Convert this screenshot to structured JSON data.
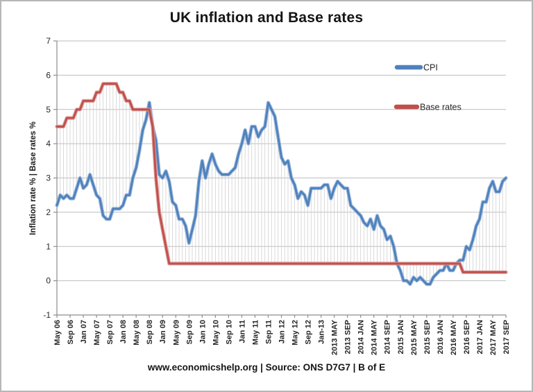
{
  "chart_data": {
    "type": "line",
    "title": "UK inflation and Base rates",
    "xlabel": "",
    "ylabel": "Inflation rate % | Base rates %",
    "footer": "www.economicshelp.org | Source: ONS D7G7 | B of E",
    "ylim": [
      -1,
      7
    ],
    "yticks": [
      -1,
      0,
      1,
      2,
      3,
      4,
      5,
      6,
      7
    ],
    "grid": true,
    "high_low_lines": true,
    "legend_position": "inside-top-right",
    "x_unit": "month",
    "x_start": "May 2006",
    "x_end": "Sep 2017",
    "xtick_interval_months": 4,
    "xtick_labels": [
      "May 06",
      "Sep 06",
      "Jan 07",
      "May 07",
      "Sep 07",
      "Jan 08",
      "May 08",
      "Sep 08",
      "Jan 09",
      "May 09",
      "Sep 09",
      "Jan 10",
      "May 10",
      "Sep 10",
      "Jan 11",
      "May 11",
      "Sep 11",
      "Jan 12",
      "May 12",
      "Sep 12",
      "Jan-13",
      "2013 MAY",
      "2013 SEP",
      "2014 JAN",
      "2014 MAY",
      "2014 SEP",
      "2015 JAN",
      "2015 MAY",
      "2015 SEP",
      "2016 JAN",
      "2016 MAY",
      "2016 SEP",
      "2017 JAN",
      "2017 MAY",
      "2017 SEP"
    ],
    "colors": {
      "cpi": "#4F81BD",
      "cpi_halo": "#95B3D7",
      "base": "#C0504D",
      "base_halo": "#D99694",
      "grid": "#BDBDBD",
      "hatch": "#D0D0D0",
      "axis": "#8C8C8C",
      "tick_text": "#262626"
    },
    "series": [
      {
        "name": "CPI",
        "color_key": "cpi",
        "values": [
          2.2,
          2.5,
          2.4,
          2.5,
          2.4,
          2.4,
          2.7,
          3.0,
          2.7,
          2.8,
          3.1,
          2.8,
          2.5,
          2.4,
          1.9,
          1.8,
          1.8,
          2.1,
          2.1,
          2.1,
          2.2,
          2.5,
          2.5,
          3.0,
          3.3,
          3.8,
          4.4,
          4.7,
          5.2,
          4.5,
          4.1,
          3.1,
          3.0,
          3.2,
          2.9,
          2.3,
          2.2,
          1.8,
          1.8,
          1.6,
          1.1,
          1.5,
          1.9,
          2.9,
          3.5,
          3.0,
          3.4,
          3.7,
          3.4,
          3.2,
          3.1,
          3.1,
          3.1,
          3.2,
          3.3,
          3.7,
          4.0,
          4.4,
          4.0,
          4.5,
          4.5,
          4.2,
          4.4,
          4.5,
          5.2,
          5.0,
          4.8,
          4.2,
          3.6,
          3.4,
          3.5,
          3.0,
          2.8,
          2.4,
          2.6,
          2.5,
          2.2,
          2.7,
          2.7,
          2.7,
          2.7,
          2.8,
          2.8,
          2.4,
          2.7,
          2.9,
          2.8,
          2.7,
          2.7,
          2.2,
          2.1,
          2.0,
          1.9,
          1.7,
          1.6,
          1.8,
          1.5,
          1.9,
          1.6,
          1.5,
          1.2,
          1.3,
          1.0,
          0.5,
          0.3,
          0.0,
          0.0,
          -0.1,
          0.1,
          0.0,
          0.1,
          0.0,
          -0.1,
          -0.1,
          0.1,
          0.2,
          0.3,
          0.3,
          0.5,
          0.3,
          0.3,
          0.5,
          0.6,
          0.6,
          1.0,
          0.9,
          1.2,
          1.6,
          1.8,
          2.3,
          2.3,
          2.7,
          2.9,
          2.6,
          2.6,
          2.9,
          3.0
        ]
      },
      {
        "name": "Base rates",
        "color_key": "base",
        "values": [
          4.5,
          4.5,
          4.5,
          4.75,
          4.75,
          4.75,
          5.0,
          5.0,
          5.25,
          5.25,
          5.25,
          5.25,
          5.5,
          5.5,
          5.75,
          5.75,
          5.75,
          5.75,
          5.75,
          5.5,
          5.5,
          5.25,
          5.25,
          5.0,
          5.0,
          5.0,
          5.0,
          5.0,
          5.0,
          4.5,
          3.0,
          2.0,
          1.5,
          1.0,
          0.5,
          0.5,
          0.5,
          0.5,
          0.5,
          0.5,
          0.5,
          0.5,
          0.5,
          0.5,
          0.5,
          0.5,
          0.5,
          0.5,
          0.5,
          0.5,
          0.5,
          0.5,
          0.5,
          0.5,
          0.5,
          0.5,
          0.5,
          0.5,
          0.5,
          0.5,
          0.5,
          0.5,
          0.5,
          0.5,
          0.5,
          0.5,
          0.5,
          0.5,
          0.5,
          0.5,
          0.5,
          0.5,
          0.5,
          0.5,
          0.5,
          0.5,
          0.5,
          0.5,
          0.5,
          0.5,
          0.5,
          0.5,
          0.5,
          0.5,
          0.5,
          0.5,
          0.5,
          0.5,
          0.5,
          0.5,
          0.5,
          0.5,
          0.5,
          0.5,
          0.5,
          0.5,
          0.5,
          0.5,
          0.5,
          0.5,
          0.5,
          0.5,
          0.5,
          0.5,
          0.5,
          0.5,
          0.5,
          0.5,
          0.5,
          0.5,
          0.5,
          0.5,
          0.5,
          0.5,
          0.5,
          0.5,
          0.5,
          0.5,
          0.5,
          0.5,
          0.5,
          0.5,
          0.5,
          0.25,
          0.25,
          0.25,
          0.25,
          0.25,
          0.25,
          0.25,
          0.25,
          0.25,
          0.25,
          0.25,
          0.25,
          0.25,
          0.25
        ]
      }
    ]
  }
}
